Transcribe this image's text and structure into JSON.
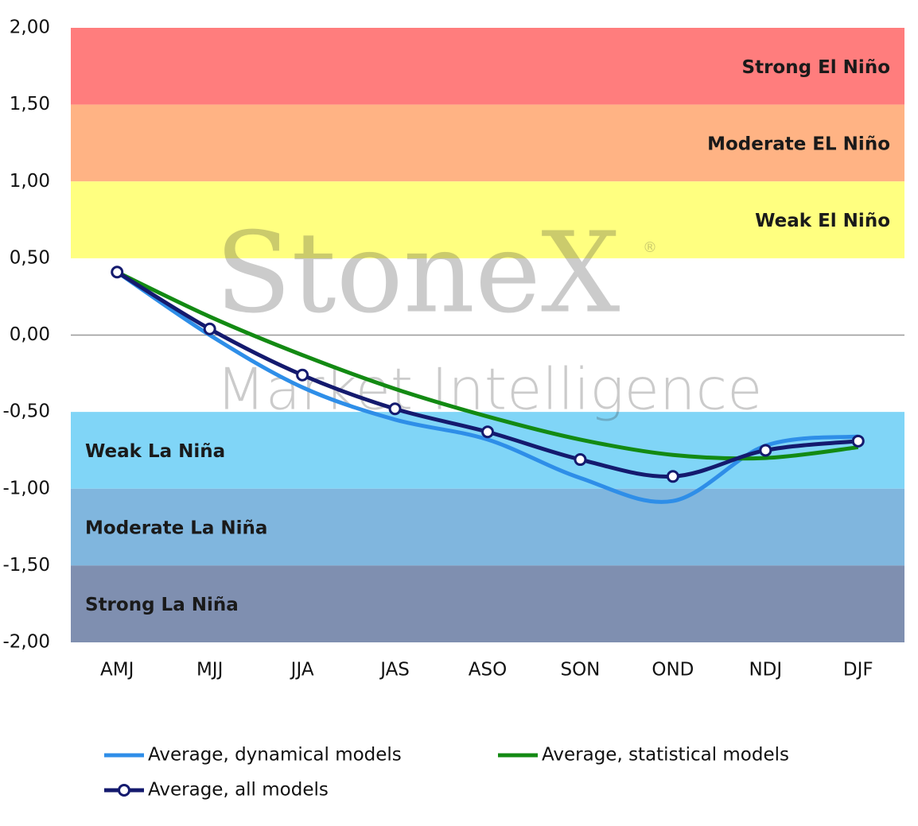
{
  "chart_data": {
    "type": "line",
    "watermark": "StoneX",
    "watermark_mark": "®",
    "watermark_sub": "Market Intelligence",
    "categories": [
      "AMJ",
      "MJJ",
      "JJA",
      "JAS",
      "ASO",
      "SON",
      "OND",
      "NDJ",
      "DJF"
    ],
    "series": [
      {
        "name": "Average, dynamical models",
        "color": "#2e8ee8",
        "values": [
          0.41,
          0.0,
          -0.34,
          -0.55,
          -0.68,
          -0.93,
          -1.08,
          -0.72,
          -0.66
        ]
      },
      {
        "name": "Average, statistical models",
        "color": "#138a13",
        "values": [
          0.41,
          0.12,
          -0.13,
          -0.35,
          -0.53,
          -0.68,
          -0.78,
          -0.8,
          -0.73
        ]
      },
      {
        "name": "Average, all models",
        "color": "#141a6e",
        "markers": true,
        "values": [
          0.41,
          0.04,
          -0.26,
          -0.48,
          -0.63,
          -0.81,
          -0.92,
          -0.75,
          -0.69
        ]
      }
    ],
    "bands": [
      {
        "from": 1.5,
        "to": 2.0,
        "label": "Strong El Niño",
        "color": "#ff7d7d",
        "align": "right"
      },
      {
        "from": 1.0,
        "to": 1.5,
        "label": "Moderate EL Niño",
        "color": "#ffb384",
        "align": "right"
      },
      {
        "from": 0.5,
        "to": 1.0,
        "label": "Weak El Niño",
        "color": "#ffff80",
        "align": "right"
      },
      {
        "from": -1.0,
        "to": -0.5,
        "label": "Weak La Niña",
        "color": "#80d5f7",
        "align": "left"
      },
      {
        "from": -1.5,
        "to": -1.0,
        "label": "Moderate La Niña",
        "color": "#80b6de",
        "align": "left"
      },
      {
        "from": -2.0,
        "to": -1.5,
        "label": "Strong La Niña",
        "color": "#7f8fb0",
        "align": "left"
      }
    ],
    "ylim": [
      -2.0,
      2.0
    ],
    "yticks": [
      {
        "value": -2.0,
        "label": "-2,00"
      },
      {
        "value": -1.5,
        "label": "-1,50"
      },
      {
        "value": -1.0,
        "label": "-1,00"
      },
      {
        "value": -0.5,
        "label": "-0,50"
      },
      {
        "value": 0.0,
        "label": "0,00"
      },
      {
        "value": 0.5,
        "label": "0,50"
      },
      {
        "value": 1.0,
        "label": "1,00"
      },
      {
        "value": 1.5,
        "label": "1,50"
      },
      {
        "value": 2.0,
        "label": "2,00"
      }
    ]
  }
}
